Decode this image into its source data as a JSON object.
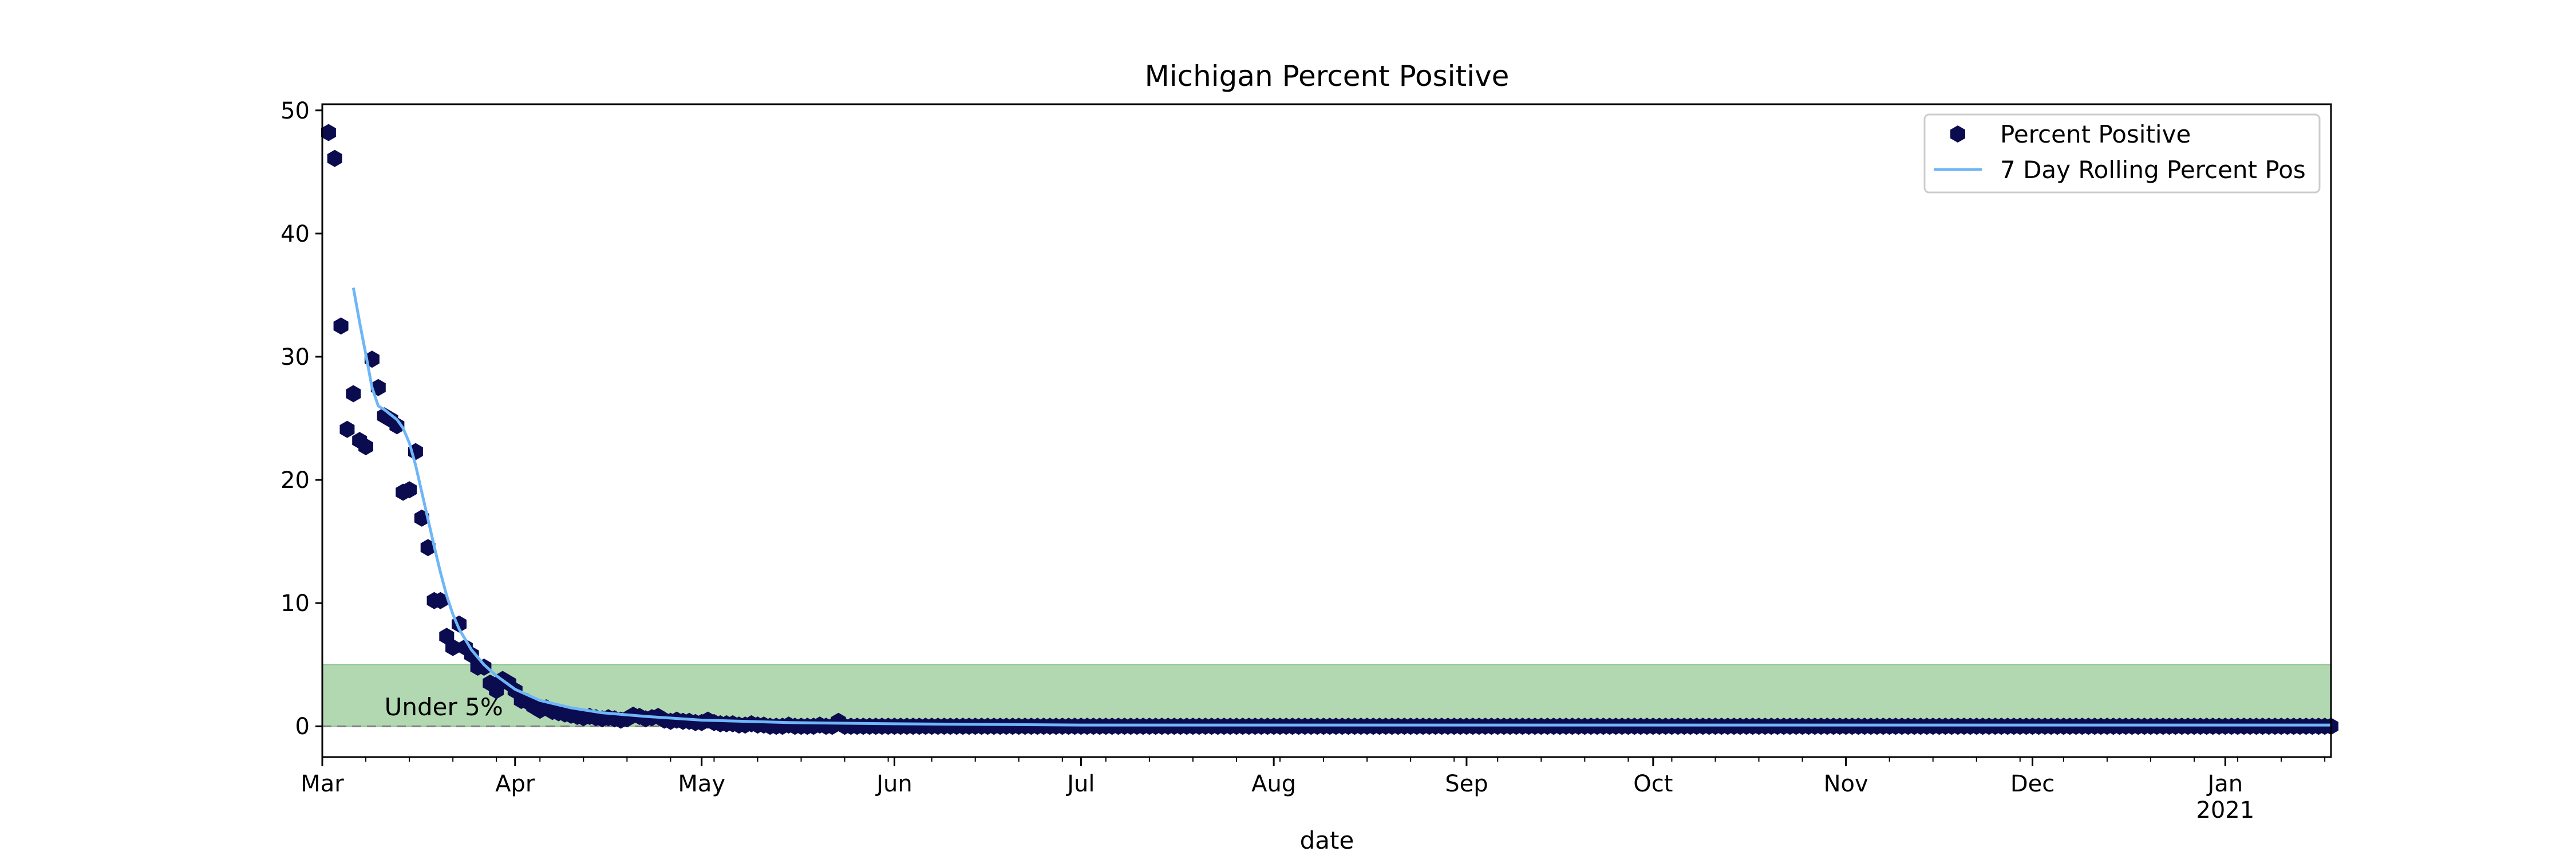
{
  "chart_data": {
    "type": "scatter",
    "title": "Michigan Percent Positive",
    "xlabel": "date",
    "ylabel": "",
    "x_range": [
      "2020-03-01",
      "2021-01-18"
    ],
    "ylim": [
      -2.5,
      50.5
    ],
    "y_ticks": [
      0,
      10,
      20,
      30,
      40,
      50
    ],
    "x_ticks": [
      {
        "date": "2020-03-01",
        "label": "Mar"
      },
      {
        "date": "2020-04-01",
        "label": "Apr"
      },
      {
        "date": "2020-05-01",
        "label": "May"
      },
      {
        "date": "2020-06-01",
        "label": "Jun"
      },
      {
        "date": "2020-07-01",
        "label": "Jul"
      },
      {
        "date": "2020-08-01",
        "label": "Aug"
      },
      {
        "date": "2020-09-01",
        "label": "Sep"
      },
      {
        "date": "2020-10-01",
        "label": "Oct"
      },
      {
        "date": "2020-11-01",
        "label": "Nov"
      },
      {
        "date": "2020-12-01",
        "label": "Dec"
      },
      {
        "date": "2021-01-01",
        "label": "Jan",
        "sublabel": "2021"
      }
    ],
    "grid": false,
    "legend_position": "top-right",
    "threshold_band": {
      "from": 0,
      "to": 5,
      "label": "Under 5%",
      "color": "#b2d8b2"
    },
    "zero_line": {
      "y": 0,
      "color": "#808080",
      "style": "dashed"
    },
    "series": [
      {
        "name": "Percent Positive",
        "kind": "scatter",
        "marker": "hexagon",
        "color": "#0b0b50",
        "start_date": "2020-03-02",
        "points": [
          48.2,
          46.1,
          32.5,
          24.1,
          27.0,
          23.2,
          22.7,
          29.8,
          27.5,
          25.2,
          24.9,
          24.4,
          19.0,
          19.2,
          22.3,
          16.9,
          14.5,
          10.2,
          10.2,
          7.3,
          6.4,
          8.3,
          6.4,
          5.8,
          4.8,
          4.8,
          3.5,
          2.9,
          3.8,
          3.5,
          2.9,
          2.1,
          2.0,
          1.6,
          1.3,
          1.5,
          1.2,
          1.1,
          1.0,
          0.9,
          0.8,
          0.7,
          0.8,
          0.7,
          0.6,
          0.7,
          0.6,
          0.5,
          0.6,
          0.9,
          0.8,
          0.6,
          0.7,
          0.8,
          0.5,
          0.4,
          0.5,
          0.4,
          0.4,
          0.3,
          0.3,
          0.5,
          0.3,
          0.2,
          0.2,
          0.2,
          0.1,
          0.1,
          0.2,
          0.1,
          0.1,
          0.0,
          0.0,
          0.0,
          0.1,
          0.0,
          0.0,
          0.0,
          0.0,
          0.1,
          0.0,
          0.0,
          0.4,
          0.0,
          0.0,
          0.0,
          0.0,
          0.0,
          0.0,
          0.0
        ],
        "tail_value": 0.0,
        "end_date": "2021-01-18"
      },
      {
        "name": "7 Day Rolling Percent Pos",
        "kind": "line",
        "color": "#6fb6f7",
        "points": [
          {
            "date": "2020-03-06",
            "y": 35.6
          },
          {
            "date": "2020-03-07",
            "y": 32.8
          },
          {
            "date": "2020-03-08",
            "y": 30.2
          },
          {
            "date": "2020-03-09",
            "y": 27.5
          },
          {
            "date": "2020-03-10",
            "y": 26.0
          },
          {
            "date": "2020-03-11",
            "y": 25.7
          },
          {
            "date": "2020-03-12",
            "y": 25.3
          },
          {
            "date": "2020-03-13",
            "y": 24.9
          },
          {
            "date": "2020-03-14",
            "y": 24.2
          },
          {
            "date": "2020-03-15",
            "y": 23.0
          },
          {
            "date": "2020-03-16",
            "y": 21.2
          },
          {
            "date": "2020-03-17",
            "y": 19.0
          },
          {
            "date": "2020-03-18",
            "y": 16.8
          },
          {
            "date": "2020-03-19",
            "y": 14.6
          },
          {
            "date": "2020-03-20",
            "y": 12.5
          },
          {
            "date": "2020-03-21",
            "y": 10.6
          },
          {
            "date": "2020-03-22",
            "y": 9.1
          },
          {
            "date": "2020-03-23",
            "y": 7.9
          },
          {
            "date": "2020-03-25",
            "y": 6.2
          },
          {
            "date": "2020-03-27",
            "y": 5.0
          },
          {
            "date": "2020-03-29",
            "y": 4.1
          },
          {
            "date": "2020-04-01",
            "y": 3.0
          },
          {
            "date": "2020-04-05",
            "y": 2.1
          },
          {
            "date": "2020-04-10",
            "y": 1.5
          },
          {
            "date": "2020-04-15",
            "y": 1.1
          },
          {
            "date": "2020-04-22",
            "y": 0.8
          },
          {
            "date": "2020-05-01",
            "y": 0.5
          },
          {
            "date": "2020-05-15",
            "y": 0.3
          },
          {
            "date": "2020-06-01",
            "y": 0.2
          },
          {
            "date": "2020-07-01",
            "y": 0.1
          },
          {
            "date": "2020-11-01",
            "y": 0.1
          },
          {
            "date": "2020-11-20",
            "y": 0.1
          },
          {
            "date": "2021-01-18",
            "y": 0.1
          }
        ]
      }
    ]
  }
}
